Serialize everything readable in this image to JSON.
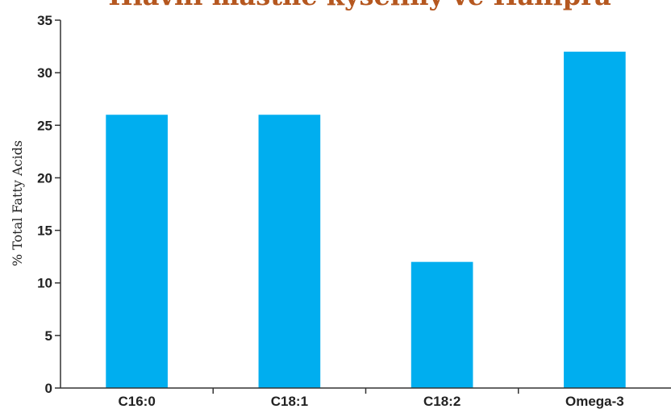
{
  "chart_data": {
    "type": "bar",
    "title": "Hlavní mastné kyseliny ve Hanipra",
    "xlabel": "",
    "ylabel": "% Total Fatty Acids",
    "categories": [
      "C16:0",
      "C18:1",
      "C18:2",
      "Omega-3"
    ],
    "values": [
      26,
      26,
      12,
      32
    ],
    "ylim": [
      0,
      35
    ],
    "yticks": [
      0,
      5,
      10,
      15,
      20,
      25,
      30,
      35
    ],
    "bar_color": "#00aeef",
    "title_color": "#b5571f",
    "grid": false,
    "legend": "none"
  }
}
